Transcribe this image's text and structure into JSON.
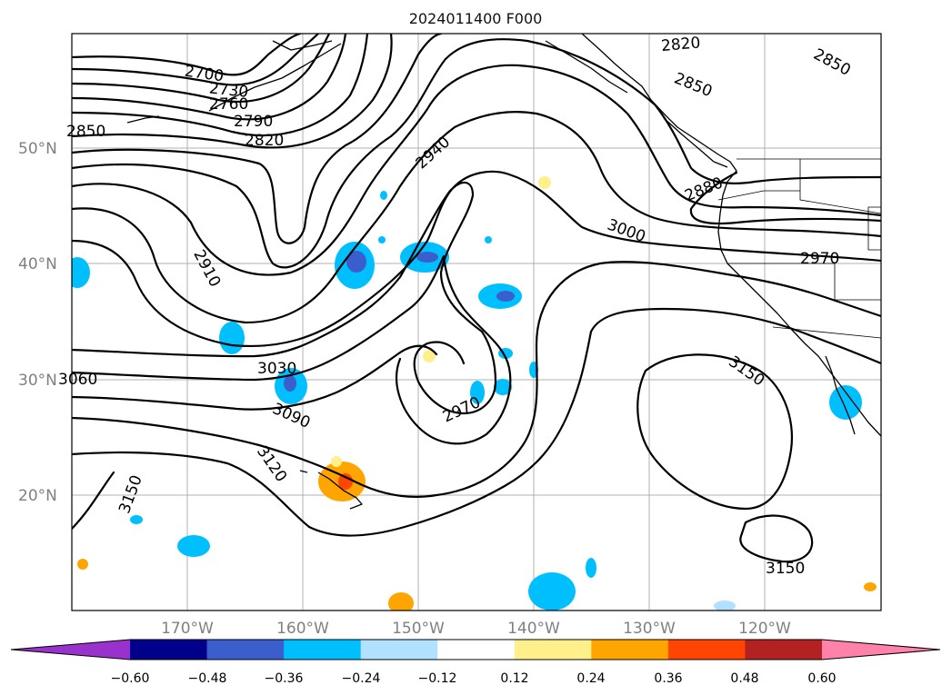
{
  "title": "2024011400 F000",
  "lat_labels": [
    "50°N",
    "40°N",
    "30°N",
    "20°N"
  ],
  "lon_labels": [
    "170°W",
    "160°W",
    "150°W",
    "140°W",
    "130°W",
    "120°W"
  ],
  "contour_labels": [
    "2700",
    "2730",
    "2760",
    "2790",
    "2820",
    "2850",
    "2820",
    "2850",
    "2850",
    "2880",
    "2940",
    "2910",
    "3000",
    "2970",
    "3030",
    "3060",
    "3090",
    "3120",
    "3150",
    "2970",
    "3150",
    "3150"
  ],
  "colorbar": {
    "tick_labels": [
      "−0.60",
      "−0.48",
      "−0.36",
      "−0.24",
      "−0.12",
      "0.12",
      "0.24",
      "0.36",
      "0.48",
      "0.60"
    ],
    "colors": [
      "#9932cc",
      "#00008b",
      "#3a5fcd",
      "#00bfff",
      "#b0e2ff",
      "#ffffff",
      "#fff08c",
      "#ffa500",
      "#ff4500",
      "#b22222",
      "#ff82ab"
    ]
  },
  "colors": {
    "contour": "#000000",
    "grid": "#b0b0b0",
    "axis_label": "#808080"
  }
}
